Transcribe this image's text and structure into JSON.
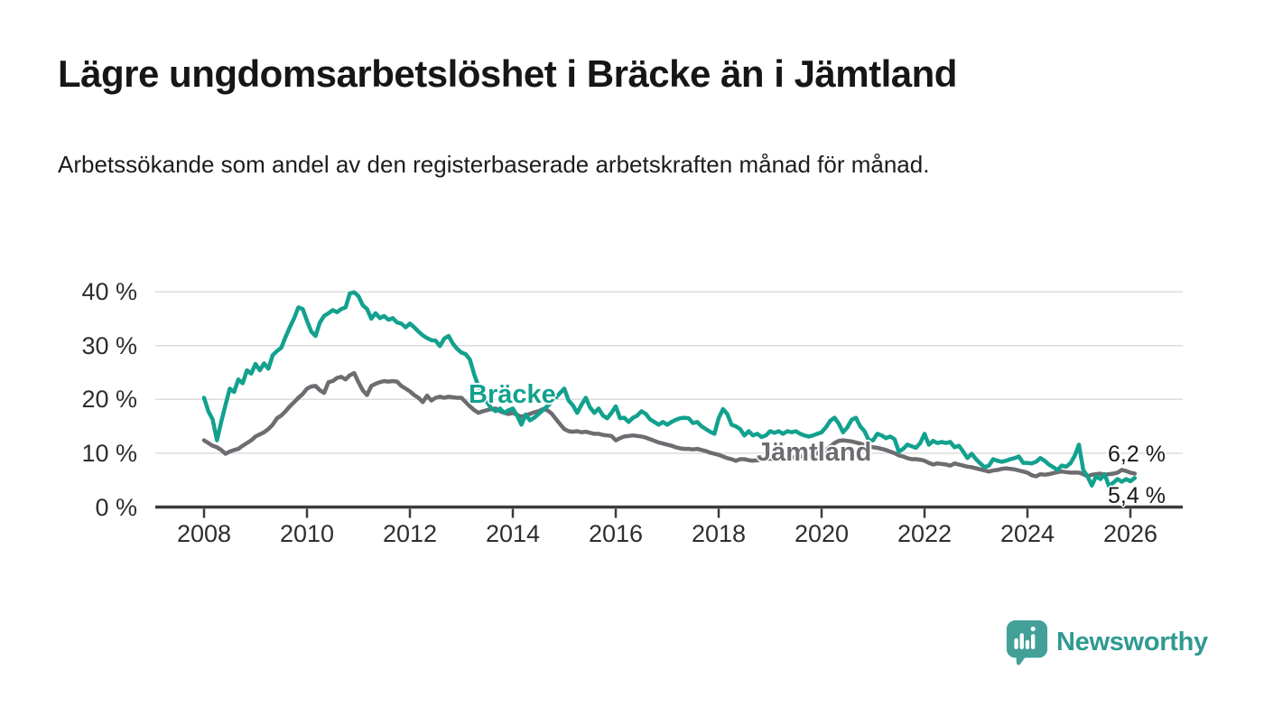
{
  "header": {
    "title": "Lägre ungdomsarbetslöshet i Bräcke än i Jämtland",
    "subtitle": "Arbetssökande som andel av den registerbaserade arbetskraften månad för månad."
  },
  "annotations": {
    "bracke_label": "Bräcke",
    "jamtland_label": "Jämtland",
    "jamtland_end_value": "6,2 %",
    "bracke_end_value": "5,4 %"
  },
  "footer": {
    "brand": "Newsworthy",
    "logo_icon": "newsworthy-speech-bubble-bar-chart-icon",
    "brand_color": "#2f9a91",
    "logo_fill": "#42a099"
  },
  "colors": {
    "bracke_line": "#12a18e",
    "jamtland_line": "#6d6d71",
    "grid": "#dcdcdc",
    "axis": "#3b3b3b",
    "axis_text": "#2e2e2e",
    "title_text": "#161616"
  },
  "chart_data": {
    "type": "line",
    "title": "Lägre ungdomsarbetslöshet i Bräcke än i Jämtland",
    "subtitle": "Arbetssökande som andel av den registerbaserade arbetskraften månad för månad.",
    "unit": "%",
    "frequency": "monthly",
    "x_start": "2008-01",
    "x_end": "2026-02",
    "ylim": [
      0,
      42
    ],
    "grid": true,
    "legend_position": "inline-labels",
    "y_ticks": [
      {
        "value": 0,
        "label": "0 %"
      },
      {
        "value": 10,
        "label": "10 %"
      },
      {
        "value": 20,
        "label": "20 %"
      },
      {
        "value": 30,
        "label": "30 %"
      },
      {
        "value": 40,
        "label": "40 %"
      }
    ],
    "x_ticks": [
      {
        "year": 2008,
        "label": "2008"
      },
      {
        "year": 2010,
        "label": "2010"
      },
      {
        "year": 2012,
        "label": "2012"
      },
      {
        "year": 2014,
        "label": "2014"
      },
      {
        "year": 2016,
        "label": "2016"
      },
      {
        "year": 2018,
        "label": "2018"
      },
      {
        "year": 2020,
        "label": "2020"
      },
      {
        "year": 2022,
        "label": "2022"
      },
      {
        "year": 2024,
        "label": "2024"
      },
      {
        "year": 2026,
        "label": "2026"
      }
    ],
    "series": [
      {
        "name": "Jämtland",
        "color": "#6d6d71",
        "end_label": "6,2 %",
        "last_value": 6.2,
        "values": [
          12.4,
          11.9,
          11.4,
          11.1,
          10.6,
          9.9,
          10.3,
          10.6,
          10.8,
          11.4,
          11.9,
          12.4,
          13.1,
          13.5,
          13.9,
          14.5,
          15.3,
          16.5,
          17.0,
          17.8,
          18.7,
          19.5,
          20.3,
          21.0,
          22.0,
          22.4,
          22.5,
          21.7,
          21.2,
          23.2,
          23.4,
          24.0,
          24.2,
          23.7,
          24.5,
          24.9,
          23.2,
          21.7,
          20.8,
          22.5,
          22.9,
          23.2,
          23.4,
          23.3,
          23.4,
          23.3,
          22.5,
          22.0,
          21.5,
          20.8,
          20.3,
          19.5,
          20.7,
          19.8,
          20.3,
          20.5,
          20.3,
          20.5,
          20.4,
          20.3,
          20.3,
          19.5,
          18.7,
          18.0,
          17.5,
          17.8,
          18.0,
          18.2,
          18.3,
          17.8,
          17.5,
          17.3,
          17.5,
          17.1,
          16.8,
          17.0,
          17.3,
          17.6,
          17.8,
          18.2,
          18.0,
          17.4,
          16.4,
          15.4,
          14.5,
          14.1,
          14.0,
          14.1,
          13.9,
          14.0,
          13.8,
          13.6,
          13.6,
          13.4,
          13.3,
          13.2,
          12.4,
          12.8,
          13.1,
          13.2,
          13.3,
          13.2,
          13.1,
          12.9,
          12.6,
          12.3,
          12.0,
          11.8,
          11.6,
          11.4,
          11.1,
          10.9,
          10.8,
          10.8,
          10.7,
          10.8,
          10.6,
          10.4,
          10.1,
          9.9,
          9.7,
          9.4,
          9.1,
          8.9,
          8.6,
          8.9,
          8.9,
          8.7,
          8.6,
          8.7,
          8.8,
          8.9,
          9.0,
          8.9,
          8.9,
          9.0,
          9.1,
          9.2,
          9.3,
          9.4,
          9.4,
          9.5,
          9.7,
          10.0,
          10.3,
          10.6,
          11.2,
          11.9,
          12.3,
          12.4,
          12.3,
          12.2,
          12.0,
          11.8,
          11.5,
          11.3,
          11.1,
          11.0,
          10.8,
          10.6,
          10.3,
          10.0,
          9.6,
          9.4,
          9.1,
          8.9,
          8.9,
          8.8,
          8.6,
          8.2,
          7.9,
          8.1,
          8.0,
          7.9,
          7.7,
          8.1,
          7.9,
          7.7,
          7.5,
          7.4,
          7.2,
          7.0,
          6.8,
          6.6,
          6.8,
          6.9,
          7.1,
          7.2,
          7.1,
          7.0,
          6.8,
          6.6,
          6.4,
          5.9,
          5.7,
          6.1,
          6.0,
          6.1,
          6.3,
          6.5,
          6.6,
          6.5,
          6.4,
          6.4,
          6.4,
          6.1,
          5.7,
          6.0,
          6.1,
          6.2,
          6.0,
          6.1,
          6.2,
          6.4,
          6.9,
          6.7,
          6.4,
          6.2
        ]
      },
      {
        "name": "Bräcke",
        "color": "#12a18e",
        "end_label": "5,4 %",
        "last_value": 5.4,
        "values": [
          20.3,
          17.8,
          16.3,
          12.4,
          15.8,
          19.0,
          22.0,
          21.4,
          23.7,
          23.0,
          25.4,
          24.8,
          26.6,
          25.4,
          26.7,
          25.7,
          28.2,
          29.0,
          29.6,
          31.6,
          33.4,
          35.1,
          37.1,
          36.8,
          34.6,
          32.6,
          31.8,
          34.3,
          35.5,
          36.0,
          36.6,
          36.2,
          36.8,
          37.1,
          39.7,
          39.9,
          39.2,
          37.5,
          36.8,
          35.0,
          36.0,
          35.1,
          35.5,
          34.8,
          35.1,
          34.3,
          34.1,
          33.4,
          34.1,
          33.4,
          32.6,
          31.9,
          31.4,
          31.0,
          30.9,
          29.9,
          31.3,
          31.8,
          30.4,
          29.4,
          28.7,
          28.4,
          27.4,
          24.6,
          22.4,
          21.0,
          19.5,
          18.3,
          17.8,
          18.3,
          17.5,
          18.0,
          18.3,
          17.0,
          15.3,
          17.2,
          16.1,
          16.6,
          17.3,
          18.0,
          18.7,
          19.5,
          20.3,
          21.2,
          22.0,
          19.8,
          18.9,
          17.5,
          19.0,
          20.3,
          18.5,
          17.5,
          18.3,
          17.0,
          16.5,
          17.5,
          18.7,
          16.5,
          16.6,
          15.8,
          16.6,
          17.0,
          17.8,
          17.3,
          16.3,
          15.8,
          15.3,
          15.8,
          15.3,
          15.8,
          16.2,
          16.5,
          16.6,
          16.5,
          15.6,
          15.8,
          15.0,
          14.5,
          14.0,
          13.6,
          16.5,
          18.2,
          17.3,
          15.3,
          15.0,
          14.5,
          13.3,
          14.1,
          13.3,
          13.6,
          13.0,
          13.3,
          14.1,
          13.8,
          14.1,
          13.6,
          14.1,
          13.9,
          14.1,
          13.6,
          13.3,
          13.1,
          13.3,
          13.6,
          13.9,
          14.8,
          16.0,
          16.6,
          15.5,
          13.9,
          14.8,
          16.2,
          16.6,
          15.0,
          14.1,
          12.4,
          12.4,
          13.6,
          13.3,
          12.8,
          13.1,
          12.6,
          10.3,
          10.8,
          11.6,
          11.3,
          11.0,
          11.9,
          13.6,
          11.6,
          12.3,
          11.9,
          12.1,
          11.9,
          12.1,
          11.1,
          11.4,
          10.3,
          9.1,
          9.9,
          8.9,
          8.1,
          7.4,
          7.7,
          8.9,
          8.6,
          8.4,
          8.6,
          8.9,
          9.1,
          9.4,
          8.2,
          8.2,
          8.1,
          8.4,
          9.1,
          8.6,
          7.9,
          7.4,
          6.9,
          7.7,
          7.5,
          8.1,
          9.5,
          11.6,
          6.9,
          5.7,
          4.0,
          5.7,
          5.2,
          6.1,
          3.9,
          4.5,
          5.2,
          4.7,
          5.2,
          4.8,
          5.4
        ]
      }
    ]
  }
}
